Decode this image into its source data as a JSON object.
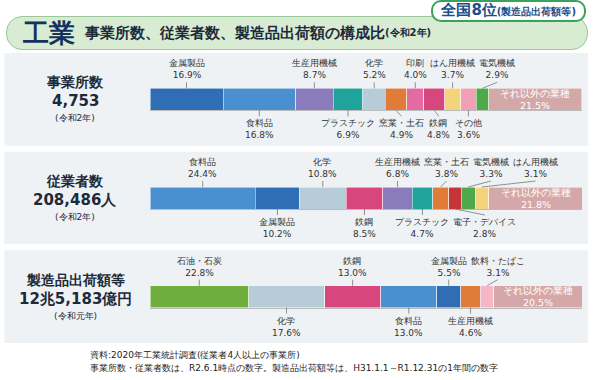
{
  "header": {
    "title": "工業",
    "subtitle": "事業所数、従業者数、製造品出荷額の構成比",
    "subtitle_note": "(令和2年)",
    "badge": "全国8位",
    "badge_note": "(製造品出荷額等)"
  },
  "chart_data": [
    {
      "type": "bar",
      "orientation": "horizontal",
      "stacked": true,
      "title": "事業所数",
      "subtitle": "4,753",
      "annotations": [
        "(令和2年)"
      ],
      "categories": [
        "金属製品",
        "食料品",
        "生産用機械",
        "プラスチック",
        "化学",
        "窯業・土石",
        "印刷",
        "鉄鋼",
        "はん用機械",
        "その他",
        "電気機械",
        "それ以外の業種"
      ],
      "values": [
        16.9,
        16.8,
        8.7,
        6.9,
        5.2,
        4.9,
        4.0,
        4.8,
        3.7,
        3.6,
        2.9,
        21.5
      ],
      "value_labels": [
        "16.9%",
        "16.8%",
        "8.7%",
        "6.9%",
        "5.2%",
        "4.9%",
        "4.0%",
        "4.8%",
        "3.7%",
        "3.6%",
        "2.9%",
        "21.5%"
      ],
      "colors": [
        "#2f6eb5",
        "#4a90d0",
        "#8a7bbd",
        "#1fa39a",
        "#b7ccd9",
        "#e07b39",
        "#e46aa3",
        "#d8467e",
        "#f3d37c",
        "#f2a0b5",
        "#4fa84a",
        "#d4a8a8"
      ],
      "xlim": [
        0,
        100
      ],
      "tick_labels": false,
      "data_labels": true,
      "grid": false
    },
    {
      "type": "bar",
      "orientation": "horizontal",
      "stacked": true,
      "title": "従業者数",
      "subtitle": "208,486人",
      "annotations": [
        "(令和2年)"
      ],
      "categories": [
        "食料品",
        "金属製品",
        "化学",
        "鉄鋼",
        "生産用機械",
        "プラスチック",
        "窯業・土石",
        "電子・デバイス",
        "電気機械",
        "はん用機械",
        "それ以外の業種"
      ],
      "values": [
        24.4,
        10.2,
        10.8,
        8.5,
        6.8,
        4.7,
        3.8,
        2.8,
        3.3,
        3.1,
        21.8
      ],
      "value_labels": [
        "24.4%",
        "10.2%",
        "10.8%",
        "8.5%",
        "6.8%",
        "4.7%",
        "3.8%",
        "2.8%",
        "3.3%",
        "3.1%",
        "21.8%"
      ],
      "colors": [
        "#4a90d0",
        "#2f6eb5",
        "#b7ccd9",
        "#d8467e",
        "#8a7bbd",
        "#1fa39a",
        "#e07b39",
        "#c8333a",
        "#4fa84a",
        "#f3d37c",
        "#d4a8a8"
      ],
      "xlim": [
        0,
        100
      ],
      "tick_labels": false,
      "data_labels": true,
      "grid": false
    },
    {
      "type": "bar",
      "orientation": "horizontal",
      "stacked": true,
      "title": "製造品出荷額等",
      "subtitle": "12兆5,183億円",
      "annotations": [
        "(令和元年)"
      ],
      "categories": [
        "石油・石炭",
        "化学",
        "鉄鋼",
        "食料品",
        "金属製品",
        "生産用機械",
        "飲料・たばこ",
        "それ以外の業種"
      ],
      "values": [
        22.8,
        17.6,
        13.0,
        13.0,
        5.5,
        4.6,
        3.1,
        20.5
      ],
      "value_labels": [
        "22.8%",
        "17.6%",
        "13.0%",
        "13.0%",
        "5.5%",
        "4.6%",
        "3.1%",
        "20.5%"
      ],
      "colors": [
        "#6fae3c",
        "#b7ccd9",
        "#d8467e",
        "#4a90d0",
        "#2f6eb5",
        "#e07b39",
        "#f5b6c6",
        "#d4a8a8"
      ],
      "xlim": [
        0,
        100
      ],
      "tick_labels": false,
      "data_labels": true,
      "grid": false
    }
  ],
  "footnotes": [
    "資料:2020年工業統計調査(従業者4人以上の事業所)",
    "事業所数・従業者数は、R2.6.1時点の数字。製造品出荷額等は、H31.1.1～R1.12.31の1年間の数字"
  ]
}
